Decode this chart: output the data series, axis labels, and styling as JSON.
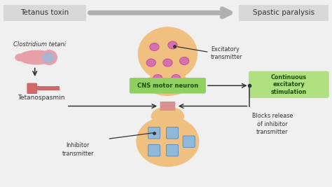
{
  "bg_color": "#f0f0f0",
  "title_left": "Tetanus toxin",
  "title_right": "Spastic paralysis",
  "title_box_color": "#d8d8d8",
  "title_text_color": "#333333",
  "bacterium_label": "Clostridium tetani",
  "toxin_label": "Tetanospasmin",
  "neuron_body_color": "#f0c080",
  "excitatory_circle_color": "#c05090",
  "excitatory_circle_fill": "#d870b0",
  "inhibitor_square_color": "#6090c0",
  "inhibitor_square_fill": "#90b8d8",
  "cns_box_color": "#90d060",
  "cns_box_text": "CNS motor neuron",
  "continuous_box_color": "#b0e080",
  "continuous_box_text": "Continuous\nexcitatory\nstimulation",
  "excitatory_label": "Excitatory\ntransmitter",
  "inhibitor_label": "Inhibitor\ntransmitter",
  "blocks_label": "Blocks release\nof inhibitor\ntransmitter",
  "bacterium_body_color": "#e8a0a8",
  "bacterium_spore_color": "#a0b8d8",
  "tetanospasmin_color": "#d06868",
  "arrow_color": "#888888",
  "line_color": "#333333"
}
